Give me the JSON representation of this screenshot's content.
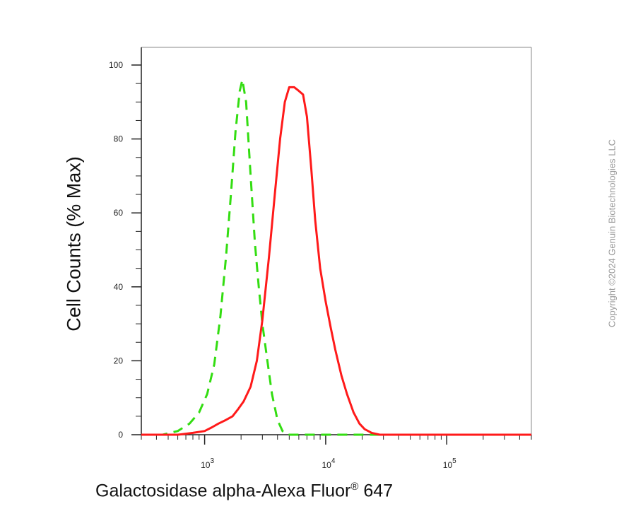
{
  "chart_data": {
    "type": "line",
    "ylabel": "Cell Counts (% Max)",
    "xlabel": "Galactosidase alpha-Alexa Fluor",
    "xlabel_super": "®",
    "xlabel_suffix": "647",
    "xscale": "log",
    "xlim": [
      300,
      500000
    ],
    "ylim": [
      0,
      105
    ],
    "yticks": [
      0,
      20,
      40,
      60,
      80,
      100
    ],
    "xticks": [
      {
        "value": 1000,
        "base": "10",
        "exp": "3"
      },
      {
        "value": 10000,
        "base": "10",
        "exp": "4"
      },
      {
        "value": 100000,
        "base": "10",
        "exp": "5"
      }
    ],
    "grid": false,
    "legend": "none",
    "series": [
      {
        "color": "#33dd11",
        "style": "dashed",
        "x": [
          300,
          450,
          600,
          750,
          900,
          1050,
          1200,
          1350,
          1500,
          1650,
          1800,
          1950,
          2050,
          2200,
          2400,
          2600,
          2800,
          3000,
          3300,
          3600,
          4000,
          4400,
          4800,
          5500,
          7000,
          20000,
          500000
        ],
        "y": [
          0,
          0,
          1,
          3,
          6,
          11,
          19,
          32,
          48,
          65,
          82,
          93,
          96,
          90,
          70,
          52,
          40,
          30,
          20,
          11,
          4,
          1,
          0,
          0,
          0,
          0,
          0
        ]
      },
      {
        "color": "#ff1a1a",
        "style": "solid",
        "x": [
          300,
          600,
          800,
          1000,
          1150,
          1300,
          1500,
          1700,
          1900,
          2100,
          2400,
          2700,
          3000,
          3400,
          3800,
          4200,
          4600,
          5000,
          5500,
          6000,
          6500,
          7000,
          7600,
          8200,
          9000,
          10000,
          11000,
          12000,
          13500,
          15000,
          17000,
          19000,
          21000,
          24000,
          28000,
          40000,
          100000,
          500000
        ],
        "y": [
          0,
          0,
          0.5,
          1,
          2,
          3,
          4,
          5,
          7,
          9,
          13,
          20,
          31,
          48,
          65,
          80,
          90,
          94,
          94,
          93,
          92,
          86,
          72,
          58,
          45,
          36,
          29,
          23,
          16,
          11,
          6,
          3,
          1.5,
          0.5,
          0,
          0,
          0,
          0
        ]
      }
    ]
  },
  "watermark": "Copyright ©2024 Genuin Biotechnologies LLC"
}
